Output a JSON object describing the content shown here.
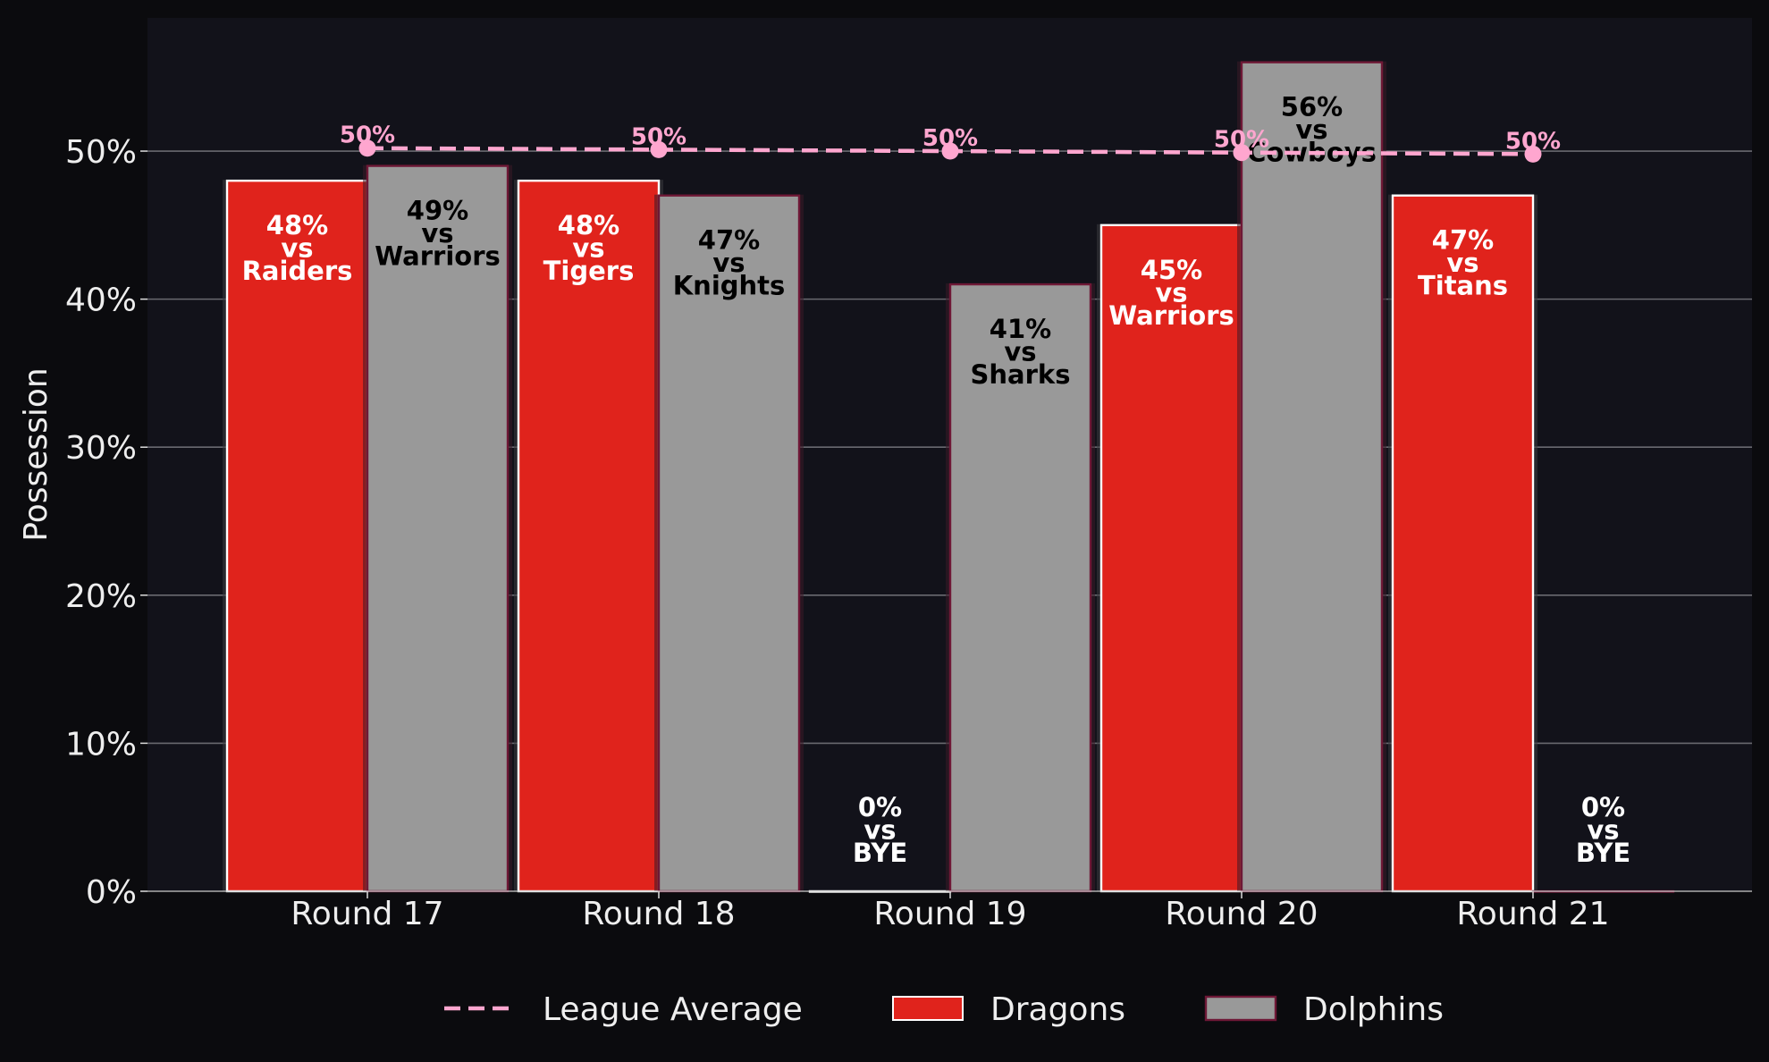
{
  "chart_data": {
    "type": "bar",
    "title": "",
    "xlabel": "",
    "ylabel": "Possession",
    "ylim": [
      0,
      59
    ],
    "yticks": [
      "0%",
      "10%",
      "20%",
      "30%",
      "40%",
      "50%"
    ],
    "categories": [
      "Round 17",
      "Round 18",
      "Round 19",
      "Round 20",
      "Round 21"
    ],
    "grid": "horizontal",
    "legend_position": "bottom-center",
    "series": [
      {
        "name": "Dragons",
        "color": "#e0231c",
        "values": [
          48,
          48,
          0,
          45,
          47
        ],
        "labels": [
          [
            "48%",
            "vs",
            "Raiders"
          ],
          [
            "48%",
            "vs",
            "Tigers"
          ],
          [
            "0%",
            "vs",
            "BYE"
          ],
          [
            "45%",
            "vs",
            "Warriors"
          ],
          [
            "47%",
            "vs",
            "Titans"
          ]
        ]
      },
      {
        "name": "Dolphins",
        "color": "#999999",
        "values": [
          49,
          47,
          41,
          56,
          0
        ],
        "labels": [
          [
            "49%",
            "vs",
            "Warriors"
          ],
          [
            "47%",
            "vs",
            "Knights"
          ],
          [
            "41%",
            "vs",
            "Sharks"
          ],
          [
            "56%",
            "vs",
            "Cowboys"
          ],
          [
            "0%",
            "vs",
            "BYE"
          ]
        ]
      }
    ],
    "league_average": {
      "name": "League Average",
      "color": "#ffa6cf",
      "values": [
        50.2,
        50.1,
        50.0,
        49.9,
        49.8
      ],
      "labels": [
        "50%",
        "50%",
        "50%",
        "50%",
        "50%"
      ]
    },
    "legend": [
      "League Average",
      "Dragons",
      "Dolphins"
    ]
  }
}
